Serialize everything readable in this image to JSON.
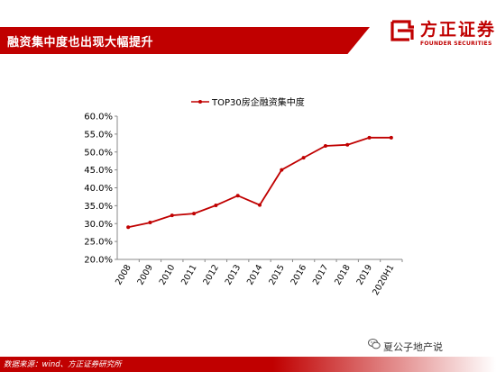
{
  "header": {
    "title": "融资集中度也出现大幅提升"
  },
  "logo": {
    "cn": "方正证券",
    "en": "FOUNDER SECURITIES"
  },
  "footer": {
    "source": "数据来源：wind、方正证券研究所"
  },
  "watermark": {
    "text": "夏公子地产说"
  },
  "colors": {
    "brand": "#c00000",
    "series": "#c00000"
  },
  "chart_data": {
    "type": "line",
    "categories": [
      "2008",
      "2009",
      "2010",
      "2011",
      "2012",
      "2013",
      "2014",
      "2015",
      "2016",
      "2017",
      "2018",
      "2019",
      "2020H1"
    ],
    "series": [
      {
        "name": "TOP30房企融资集中度",
        "values": [
          29.0,
          30.3,
          32.3,
          32.8,
          35.1,
          37.8,
          35.2,
          45.0,
          48.4,
          51.7,
          52.0,
          54.0,
          54.0
        ]
      }
    ],
    "ylim": [
      20,
      60
    ],
    "yticks": [
      "20.0%",
      "25.0%",
      "30.0%",
      "35.0%",
      "40.0%",
      "45.0%",
      "50.0%",
      "55.0%",
      "60.0%"
    ],
    "grid": false,
    "legend_position": "top"
  }
}
